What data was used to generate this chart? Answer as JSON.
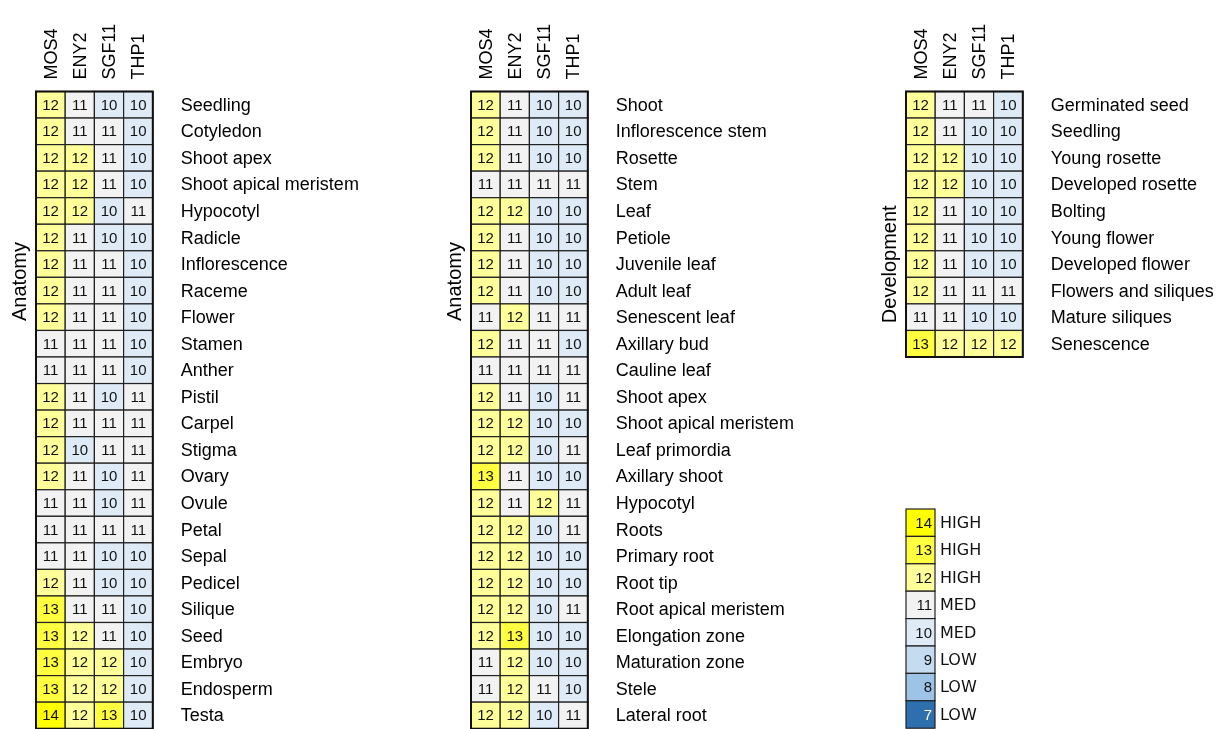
{
  "chart_data": [
    {
      "type": "heatmap",
      "ylabel": "Anatomy",
      "data_labels": true,
      "categories": [
        "MOS4",
        "ENY2",
        "SGF11",
        "THP1"
      ],
      "y_categories": [
        "Seedling",
        "Cotyledon",
        "Shoot apex",
        "Shoot apical meristem",
        "Hypocotyl",
        "Radicle",
        "Inflorescence",
        "Raceme",
        "Flower",
        "Stamen",
        "Anther",
        "Pistil",
        "Carpel",
        "Stigma",
        "Ovary",
        "Ovule",
        "Petal",
        "Sepal",
        "Pedicel",
        "Silique",
        "Seed",
        "Embryo",
        "Endosperm",
        "Testa"
      ],
      "cells": [
        [
          12,
          11,
          10,
          10
        ],
        [
          12,
          11,
          11,
          10
        ],
        [
          12,
          12,
          11,
          10
        ],
        [
          12,
          12,
          11,
          10
        ],
        [
          12,
          12,
          10,
          11
        ],
        [
          12,
          11,
          10,
          10
        ],
        [
          12,
          11,
          11,
          10
        ],
        [
          12,
          11,
          11,
          10
        ],
        [
          12,
          11,
          11,
          10
        ],
        [
          11,
          11,
          11,
          10
        ],
        [
          11,
          11,
          11,
          10
        ],
        [
          12,
          11,
          10,
          11
        ],
        [
          12,
          11,
          11,
          11
        ],
        [
          12,
          10,
          11,
          11
        ],
        [
          12,
          11,
          10,
          11
        ],
        [
          11,
          11,
          10,
          11
        ],
        [
          11,
          11,
          11,
          11
        ],
        [
          11,
          11,
          10,
          10
        ],
        [
          12,
          11,
          10,
          10
        ],
        [
          13,
          11,
          11,
          10
        ],
        [
          13,
          12,
          11,
          10
        ],
        [
          13,
          12,
          12,
          10
        ],
        [
          13,
          12,
          12,
          10
        ],
        [
          14,
          12,
          13,
          10
        ]
      ]
    },
    {
      "type": "heatmap",
      "ylabel": "Anatomy",
      "data_labels": true,
      "categories": [
        "MOS4",
        "ENY2",
        "SGF11",
        "THP1"
      ],
      "y_categories": [
        "Shoot",
        "Inflorescence stem",
        "Rosette",
        "Stem",
        "Leaf",
        "Petiole",
        "Juvenile leaf",
        "Adult leaf",
        "Senescent leaf",
        "Axillary bud",
        "Cauline leaf",
        "Shoot apex",
        "Shoot apical meristem",
        "Leaf primordia",
        "Axillary shoot",
        "Hypocotyl",
        "Roots",
        "Primary root",
        "Root tip",
        "Root apical meristem",
        "Elongation zone",
        "Maturation zone",
        "Stele",
        "Lateral root"
      ],
      "cells": [
        [
          12,
          11,
          10,
          10
        ],
        [
          12,
          11,
          10,
          10
        ],
        [
          12,
          11,
          10,
          10
        ],
        [
          11,
          11,
          11,
          11
        ],
        [
          12,
          12,
          10,
          10
        ],
        [
          12,
          11,
          10,
          10
        ],
        [
          12,
          11,
          10,
          10
        ],
        [
          12,
          11,
          10,
          10
        ],
        [
          11,
          12,
          11,
          11
        ],
        [
          12,
          11,
          11,
          10
        ],
        [
          11,
          11,
          11,
          11
        ],
        [
          12,
          11,
          10,
          11
        ],
        [
          12,
          12,
          10,
          10
        ],
        [
          12,
          12,
          10,
          11
        ],
        [
          13,
          11,
          10,
          10
        ],
        [
          12,
          11,
          12,
          11
        ],
        [
          12,
          12,
          10,
          11
        ],
        [
          12,
          12,
          10,
          10
        ],
        [
          12,
          12,
          10,
          10
        ],
        [
          12,
          12,
          10,
          11
        ],
        [
          12,
          13,
          10,
          10
        ],
        [
          11,
          12,
          10,
          10
        ],
        [
          11,
          12,
          11,
          10
        ],
        [
          12,
          12,
          10,
          11
        ]
      ]
    },
    {
      "type": "heatmap",
      "ylabel": "Development",
      "data_labels": true,
      "categories": [
        "MOS4",
        "ENY2",
        "SGF11",
        "THP1"
      ],
      "y_categories": [
        "Germinated seed",
        "Seedling",
        "Young rosette",
        "Developed rosette",
        "Bolting",
        "Young flower",
        "Developed flower",
        "Flowers and siliques",
        "Mature siliques",
        "Senescence"
      ],
      "cells": [
        [
          12,
          11,
          11,
          10
        ],
        [
          12,
          11,
          10,
          10
        ],
        [
          12,
          12,
          10,
          10
        ],
        [
          12,
          12,
          10,
          10
        ],
        [
          12,
          11,
          10,
          10
        ],
        [
          12,
          11,
          10,
          10
        ],
        [
          12,
          11,
          10,
          10
        ],
        [
          12,
          11,
          11,
          11
        ],
        [
          11,
          11,
          10,
          10
        ],
        [
          13,
          12,
          12,
          12
        ]
      ],
      "clim": [
        7,
        14
      ],
      "cticks": [
        {
          "value": 14,
          "label": "14 HIGH"
        },
        {
          "value": 13,
          "label": "13 HIGH"
        },
        {
          "value": 12,
          "label": "12 HIGH"
        },
        {
          "value": 11,
          "label": "11 MED"
        },
        {
          "value": 10,
          "label": "10 MED"
        },
        {
          "value": 9,
          "label": "9 LOW"
        },
        {
          "value": 8,
          "label": "8 LOW"
        },
        {
          "value": 7,
          "label": "7 LOW"
        }
      ]
    }
  ]
}
